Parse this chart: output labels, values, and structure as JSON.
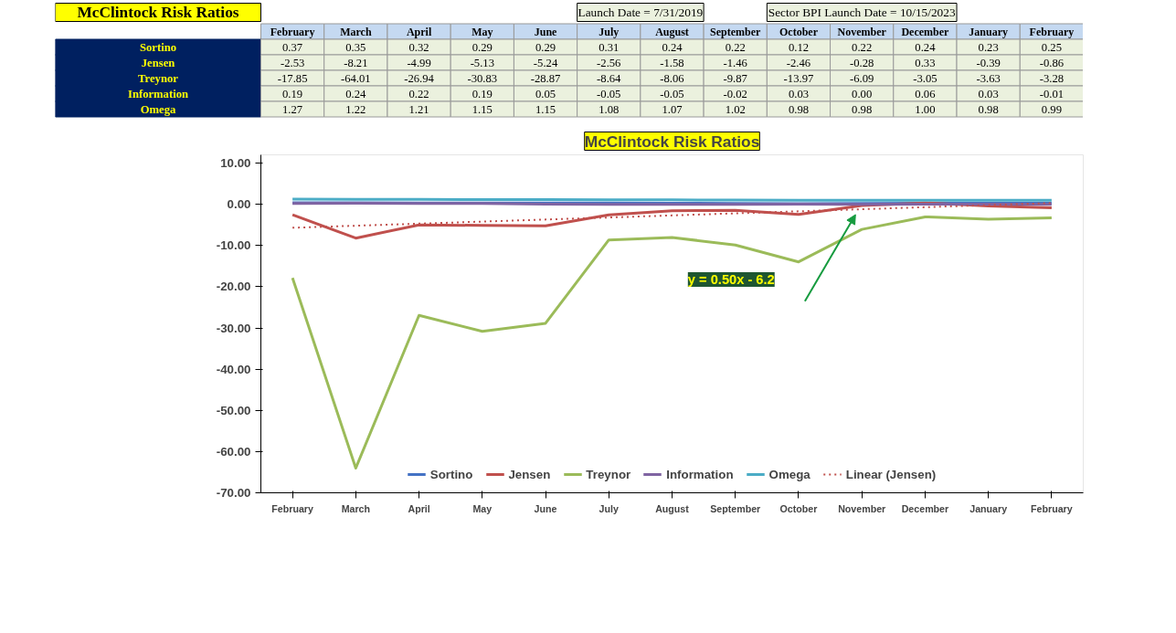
{
  "chart_data": {
    "type": "line",
    "title": "McClintock Risk Ratios",
    "categories": [
      "February",
      "March",
      "April",
      "May",
      "June",
      "July",
      "August",
      "September",
      "October",
      "November",
      "December",
      "January",
      "February"
    ],
    "series": [
      {
        "name": "Sortino",
        "color": "#4472c4",
        "values": [
          0.37,
          0.35,
          0.32,
          0.29,
          0.29,
          0.31,
          0.24,
          0.22,
          0.12,
          0.22,
          0.24,
          0.23,
          0.25
        ],
        "value_labels": [
          "0.37",
          "0.35",
          "0.32",
          "0.29",
          "0.29",
          "0.31",
          "0.24",
          "0.22",
          "0.12",
          "0.22",
          "0.24",
          "0.23",
          "0.25"
        ]
      },
      {
        "name": "Jensen",
        "color": "#c0504d",
        "values": [
          -2.53,
          -8.21,
          -4.99,
          -5.13,
          -5.24,
          -2.56,
          -1.58,
          -1.46,
          -2.46,
          -0.28,
          0.33,
          -0.39,
          -0.86
        ],
        "value_labels": [
          "-2.53",
          "-8.21",
          "-4.99",
          "-5.13",
          "-5.24",
          "-2.56",
          "-1.58",
          "-1.46",
          "-2.46",
          "-0.28",
          "0.33",
          "-0.39",
          "-0.86"
        ]
      },
      {
        "name": "Treynor",
        "color": "#9bbb59",
        "values": [
          -17.85,
          -64.01,
          -26.94,
          -30.83,
          -28.87,
          -8.64,
          -8.06,
          -9.87,
          -13.97,
          -6.09,
          -3.05,
          -3.63,
          -3.28
        ],
        "value_labels": [
          "-17.85",
          "-64.01",
          "-26.94",
          "-30.83",
          "-28.87",
          "-8.64",
          "-8.06",
          "-9.87",
          "-13.97",
          "-6.09",
          "-3.05",
          "-3.63",
          "-3.28"
        ]
      },
      {
        "name": "Information",
        "color": "#8064a2",
        "values": [
          0.19,
          0.24,
          0.22,
          0.19,
          0.05,
          -0.05,
          -0.05,
          -0.02,
          0.03,
          0.0,
          0.06,
          0.03,
          -0.01
        ],
        "value_labels": [
          "0.19",
          "0.24",
          "0.22",
          "0.19",
          "0.05",
          "-0.05",
          "-0.05",
          "-0.02",
          "0.03",
          "0.00",
          "0.06",
          "0.03",
          "-0.01"
        ]
      },
      {
        "name": "Omega",
        "color": "#4bacc6",
        "values": [
          1.27,
          1.22,
          1.21,
          1.15,
          1.15,
          1.08,
          1.07,
          1.02,
          0.98,
          0.98,
          1.0,
          0.98,
          0.99
        ],
        "value_labels": [
          "1.27",
          "1.22",
          "1.21",
          "1.15",
          "1.15",
          "1.08",
          "1.07",
          "1.02",
          "0.98",
          "0.98",
          "1.00",
          "0.98",
          "0.99"
        ]
      },
      {
        "name": "Linear (Jensen)",
        "color": "#c0504d",
        "line_style": "dotted",
        "values": [
          -5.7,
          -5.2,
          -4.7,
          -4.2,
          -3.7,
          -3.2,
          -2.7,
          -2.2,
          -1.7,
          -1.2,
          -0.7,
          -0.2,
          0.3
        ]
      }
    ],
    "ylim": [
      -70,
      12
    ],
    "yticks": [
      {
        "value": 10,
        "label": "10.00"
      },
      {
        "value": 0,
        "label": "0.00"
      },
      {
        "value": -10,
        "label": "-10.00"
      },
      {
        "value": -20,
        "label": "-20.00"
      },
      {
        "value": -30,
        "label": "-30.00"
      },
      {
        "value": -40,
        "label": "-40.00"
      },
      {
        "value": -50,
        "label": "-50.00"
      },
      {
        "value": -60,
        "label": "-60.00"
      },
      {
        "value": -70,
        "label": "-70.00"
      }
    ],
    "grid": false,
    "legend": "bottom",
    "line_style": "solid",
    "marker": "none",
    "annotations": [
      "McClintock Risk Ratios",
      "Launch Date = 7/31/2019",
      "Sector BPI Launch Date = 10/15/2023",
      "y = 0.50x - 6.2"
    ]
  }
}
